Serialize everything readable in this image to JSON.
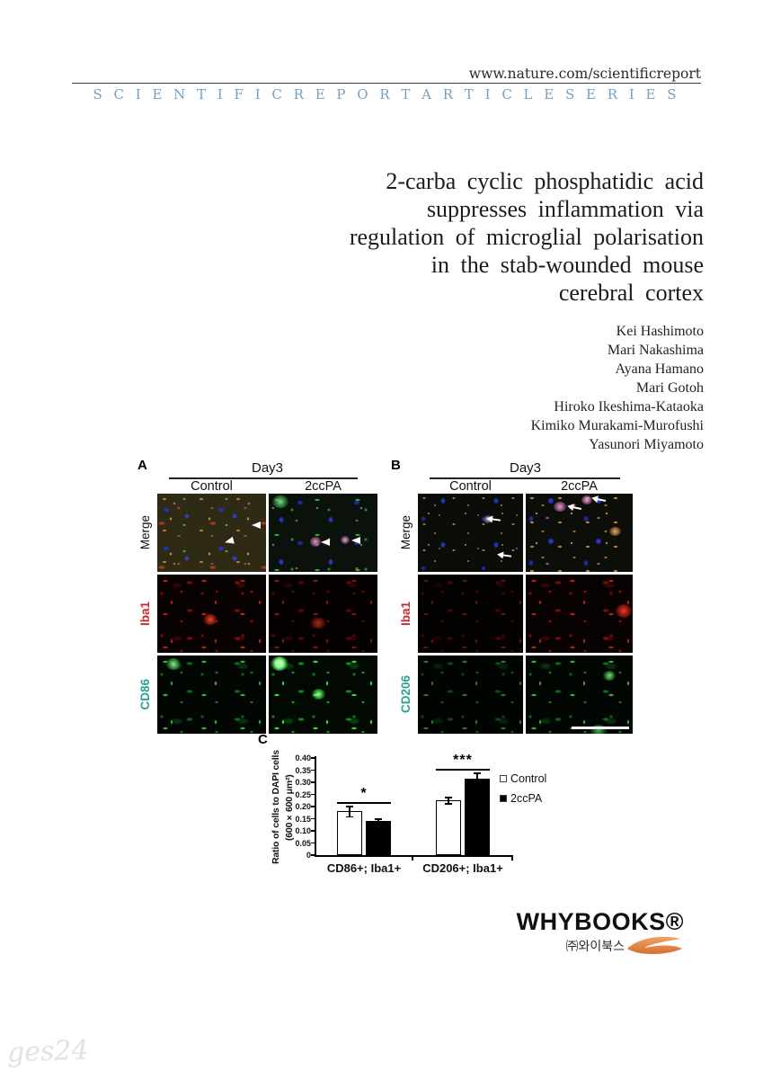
{
  "header": {
    "url": "www.nature.com/scientificreport",
    "series": "S C I E N T I F I C R E P O R T A R T I C L E S E R I E S"
  },
  "title": {
    "lines": [
      "2-carba cyclic phosphatidic acid",
      "suppresses inflammation via",
      "regulation of microglial polarisation",
      "in the stab-wounded mouse",
      "cerebral cortex"
    ]
  },
  "authors": [
    "Kei Hashimoto",
    "Mari Nakashima",
    "Ayana Hamano",
    "Mari Gotoh",
    "Hiroko Ikeshima-Kataoka",
    "Kimiko Murakami-Murofushi",
    "Yasunori Miyamoto"
  ],
  "figure": {
    "panel_a": {
      "label": "A",
      "day": "Day3",
      "col1": "Control",
      "col2": "2ccPA",
      "row1": "Merge",
      "row2": "Iba1",
      "row3": "CD86"
    },
    "panel_b": {
      "label": "B",
      "day": "Day3",
      "col1": "Control",
      "col2": "2ccPA",
      "row1": "Merge",
      "row2": "Iba1",
      "row3": "CD206"
    },
    "panel_c_label": "C"
  },
  "chart_data": {
    "type": "bar",
    "categories": [
      "CD86+; Iba1+",
      "CD206+; Iba1+"
    ],
    "series": [
      {
        "name": "Control",
        "values": [
          0.18,
          0.225
        ],
        "errors": [
          0.02,
          0.012
        ],
        "fill": "#ffffff"
      },
      {
        "name": "2ccPA",
        "values": [
          0.14,
          0.315
        ],
        "errors": [
          0.008,
          0.022
        ],
        "fill": "#000000"
      }
    ],
    "significance": [
      {
        "category_index": 0,
        "label": "*"
      },
      {
        "category_index": 1,
        "label": "***"
      }
    ],
    "ylabel": "Ratio of cells to DAPI cells",
    "ylabel2": "(600×600 μm²)",
    "ylim": [
      0,
      0.4
    ],
    "yticks": [
      0,
      0.05,
      0.1,
      0.15,
      0.2,
      0.25,
      0.3,
      0.35,
      0.4
    ],
    "ytick_labels": [
      "0",
      "0.05",
      "0.10",
      "0.15",
      "0.20",
      "0.25",
      "0.30",
      "0.35",
      "0.40"
    ],
    "legend": [
      "Control",
      "2ccPA"
    ],
    "legend_position": "right",
    "grid": false
  },
  "logo": {
    "brand": "WHYBOOKS®",
    "subtext": "㈜와이북스"
  },
  "watermark": "ges24",
  "colors": {
    "series_header_text": "#76a0c2",
    "iba1_label": "#c92b2b",
    "cd_marker_label": "#2ba393",
    "logo_swoosh": "#e0782f"
  }
}
